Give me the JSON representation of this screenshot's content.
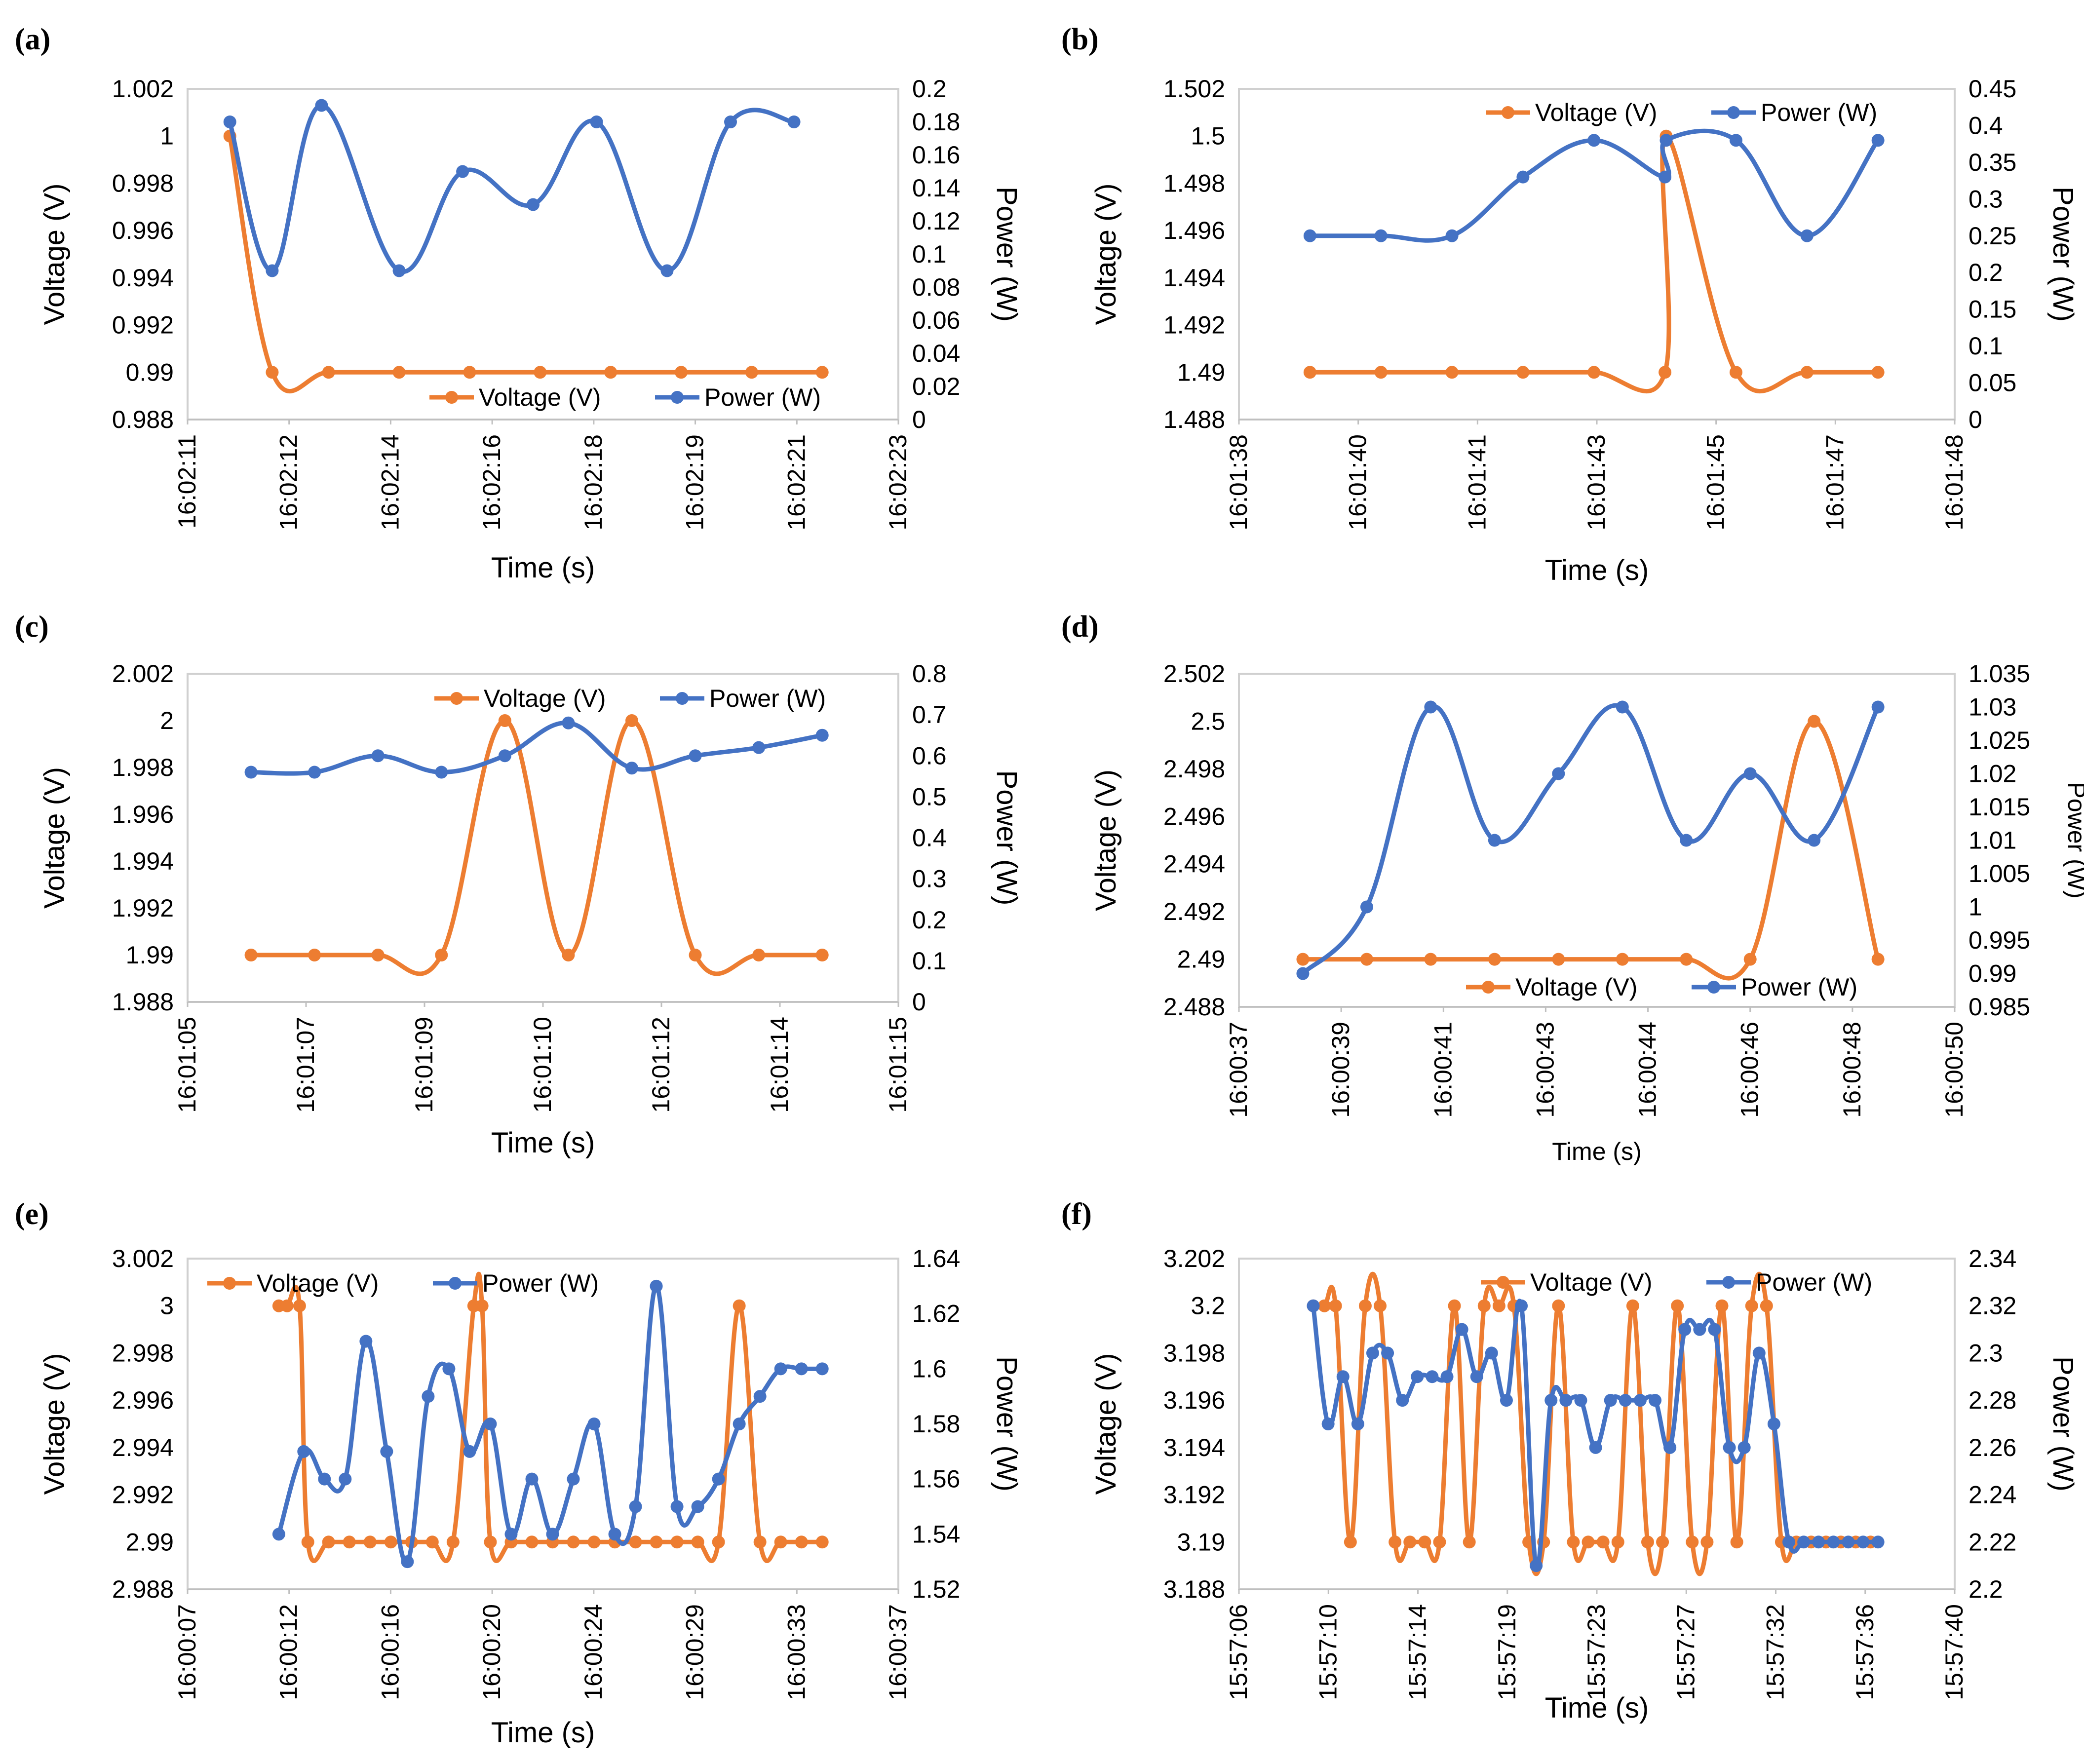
{
  "colors": {
    "voltage": "#ED7D31",
    "power": "#4472C4"
  },
  "chart_data": [
    {
      "panel": "(a)",
      "type": "line",
      "title": "",
      "xlabel": "Time (s)",
      "ylabel_left": "Voltage (V)",
      "ylabel_right": "Power (W)",
      "x_ticks": [
        "16:02:11",
        "16:02:12",
        "16:02:14",
        "16:02:16",
        "16:02:18",
        "16:02:19",
        "16:02:21",
        "16:02:23"
      ],
      "y_left_ticks": [
        "0.988",
        "0.99",
        "0.992",
        "0.994",
        "0.996",
        "0.998",
        "1",
        "1.002"
      ],
      "y_left_range": [
        0.988,
        1.002
      ],
      "y_right_ticks": [
        "0",
        "0.02",
        "0.04",
        "0.06",
        "0.08",
        "0.1",
        "0.12",
        "0.14",
        "0.16",
        "0.18",
        "0.2"
      ],
      "y_right_range": [
        0,
        0.2
      ],
      "legend": [
        "Voltage (V)",
        "Power (W)"
      ],
      "legend_position": "bottom-right",
      "series": [
        {
          "name": "Voltage (V)",
          "axis": "left",
          "x": [
            0.6,
            1.2,
            2.0,
            3.0,
            4.0,
            5.0,
            6.0,
            7.0,
            8.0,
            9.0
          ],
          "values": [
            1,
            0.99,
            0.99,
            0.99,
            0.99,
            0.99,
            0.99,
            0.99,
            0.99,
            0.99
          ]
        },
        {
          "name": "Power (W)",
          "axis": "right",
          "x": [
            0.6,
            1.2,
            1.9,
            3.0,
            3.9,
            4.9,
            5.8,
            6.8,
            7.7,
            8.6
          ],
          "values": [
            0.18,
            0.09,
            0.19,
            0.09,
            0.15,
            0.13,
            0.18,
            0.09,
            0.18,
            0.18
          ]
        }
      ]
    },
    {
      "panel": "(b)",
      "type": "line",
      "title": "",
      "xlabel": "Time (s)",
      "ylabel_left": "Voltage (V)",
      "ylabel_right": "Power (W)",
      "x_ticks": [
        "16:01:38",
        "16:01:40",
        "16:01:41",
        "16:01:43",
        "16:01:45",
        "16:01:47",
        "16:01:48"
      ],
      "y_left_ticks": [
        "1.488",
        "1.49",
        "1.492",
        "1.494",
        "1.496",
        "1.498",
        "1.5",
        "1.502"
      ],
      "y_left_range": [
        1.488,
        1.502
      ],
      "y_right_ticks": [
        "0",
        "0.05",
        "0.1",
        "0.15",
        "0.2",
        "0.25",
        "0.3",
        "0.35",
        "0.4",
        "0.45"
      ],
      "y_right_range": [
        0,
        0.45
      ],
      "legend": [
        "Voltage (V)",
        "Power (W)"
      ],
      "legend_position": "top-right",
      "series": [
        {
          "name": "Voltage (V)",
          "axis": "left",
          "x": [
            0.6,
            1.2,
            1.8,
            2.4,
            3.0,
            3.6,
            3.61,
            4.2,
            4.8,
            5.4
          ],
          "values": [
            1.49,
            1.49,
            1.49,
            1.49,
            1.49,
            1.49,
            1.5,
            1.49,
            1.49,
            1.49
          ]
        },
        {
          "name": "Power (W)",
          "axis": "right",
          "x": [
            0.6,
            1.2,
            1.8,
            2.4,
            3.0,
            3.6,
            3.61,
            4.2,
            4.8,
            5.4
          ],
          "values": [
            0.25,
            0.25,
            0.25,
            0.33,
            0.38,
            0.33,
            0.38,
            0.38,
            0.25,
            0.38
          ]
        }
      ]
    },
    {
      "panel": "(c)",
      "type": "line",
      "title": "",
      "xlabel": "Time (s)",
      "ylabel_left": "Voltage (V)",
      "ylabel_right": "Power (W)",
      "x_ticks": [
        "16:01:05",
        "16:01:07",
        "16:01:09",
        "16:01:10",
        "16:01:12",
        "16:01:14",
        "16:01:15"
      ],
      "y_left_ticks": [
        "1.988",
        "1.99",
        "1.992",
        "1.994",
        "1.996",
        "1.998",
        "2",
        "2.002"
      ],
      "y_left_range": [
        1.988,
        2.002
      ],
      "y_right_ticks": [
        "0",
        "0.1",
        "0.2",
        "0.3",
        "0.4",
        "0.5",
        "0.6",
        "0.7",
        "0.8"
      ],
      "y_right_range": [
        0,
        0.8
      ],
      "legend": [
        "Voltage (V)",
        "Power (W)"
      ],
      "legend_position": "top-right",
      "series": [
        {
          "name": "Voltage (V)",
          "axis": "left",
          "x": [
            0.6,
            1.2,
            1.8,
            2.4,
            3.0,
            3.6,
            4.2,
            4.8,
            5.4,
            6.0
          ],
          "values": [
            1.99,
            1.99,
            1.99,
            1.99,
            2,
            1.99,
            2,
            1.99,
            1.99,
            1.99
          ]
        },
        {
          "name": "Power (W)",
          "axis": "right",
          "x": [
            0.6,
            1.2,
            1.8,
            2.4,
            3.0,
            3.6,
            4.2,
            4.8,
            5.4,
            6.0
          ],
          "values": [
            0.56,
            0.56,
            0.6,
            0.56,
            0.6,
            0.68,
            0.57,
            0.6,
            0.62,
            0.65
          ]
        }
      ]
    },
    {
      "panel": "(d)",
      "type": "line",
      "title": "",
      "xlabel": "Time (s)",
      "ylabel_left": "Voltage (V)",
      "ylabel_right": "Power (W)",
      "x_ticks": [
        "16:00:37",
        "16:00:39",
        "16:00:41",
        "16:00:43",
        "16:00:44",
        "16:00:46",
        "16:00:48",
        "16:00:50"
      ],
      "y_left_ticks": [
        "2.488",
        "2.49",
        "2.492",
        "2.494",
        "2.496",
        "2.498",
        "2.5",
        "2.502"
      ],
      "y_left_range": [
        2.488,
        2.502
      ],
      "y_right_ticks": [
        "0.985",
        "0.99",
        "0.995",
        "1",
        "1.005",
        "1.01",
        "1.015",
        "1.02",
        "1.025",
        "1.03",
        "1.035"
      ],
      "y_right_range": [
        0.985,
        1.035
      ],
      "legend": [
        "Voltage (V)",
        "Power (W)"
      ],
      "legend_position": "bottom-right",
      "series": [
        {
          "name": "Voltage (V)",
          "axis": "left",
          "x": [
            0.6,
            1.2,
            1.8,
            2.4,
            3.0,
            3.6,
            4.2,
            4.8,
            5.4,
            6.0
          ],
          "values": [
            2.49,
            2.49,
            2.49,
            2.49,
            2.49,
            2.49,
            2.49,
            2.49,
            2.5,
            2.49
          ]
        },
        {
          "name": "Power (W)",
          "axis": "right",
          "x": [
            0.6,
            1.2,
            1.8,
            2.4,
            3.0,
            3.6,
            4.2,
            4.8,
            5.4,
            6.0
          ],
          "values": [
            0.99,
            1,
            1.03,
            1.01,
            1.02,
            1.03,
            1.01,
            1.02,
            1.01,
            1.03
          ]
        }
      ]
    },
    {
      "panel": "(e)",
      "type": "line",
      "title": "",
      "xlabel": "Time (s)",
      "ylabel_left": "Voltage (V)",
      "ylabel_right": "Power (W)",
      "x_ticks": [
        "16:00:07",
        "16:00:12",
        "16:00:16",
        "16:00:20",
        "16:00:24",
        "16:00:29",
        "16:00:33",
        "16:00:37"
      ],
      "y_left_ticks": [
        "2.988",
        "2.99",
        "2.992",
        "2.994",
        "2.996",
        "2.998",
        "3",
        "3.002"
      ],
      "y_left_range": [
        2.988,
        3.002
      ],
      "y_right_ticks": [
        "1.52",
        "1.54",
        "1.56",
        "1.58",
        "1.6",
        "1.62",
        "1.64"
      ],
      "y_right_range": [
        1.52,
        1.64
      ],
      "legend": [
        "Voltage (V)",
        "Power (W)"
      ],
      "legend_position": "top-left",
      "series": [
        {
          "name": "Voltage (V)",
          "axis": "left",
          "x": [
            2.2,
            2.4,
            2.7,
            2.9,
            3.4,
            3.9,
            4.4,
            4.9,
            5.4,
            5.9,
            6.4,
            6.9,
            7.1,
            7.3,
            7.8,
            8.3,
            8.8,
            9.3,
            9.8,
            10.3,
            10.8,
            11.3,
            11.8,
            12.3,
            12.8,
            13.3,
            13.8,
            14.3,
            14.8,
            15.3
          ],
          "values": [
            3,
            3,
            3,
            2.99,
            2.99,
            2.99,
            2.99,
            2.99,
            2.99,
            2.99,
            2.99,
            3,
            3,
            2.99,
            2.99,
            2.99,
            2.99,
            2.99,
            2.99,
            2.99,
            2.99,
            2.99,
            2.99,
            2.99,
            2.99,
            3,
            2.99,
            2.99,
            2.99,
            2.99
          ]
        },
        {
          "name": "Power (W)",
          "axis": "right",
          "x": [
            2.2,
            2.8,
            3.3,
            3.8,
            4.3,
            4.8,
            5.3,
            5.8,
            6.3,
            6.8,
            7.3,
            7.8,
            8.3,
            8.8,
            9.3,
            9.8,
            10.3,
            10.8,
            11.3,
            11.8,
            12.3,
            12.8,
            13.3,
            13.8,
            14.3,
            14.8,
            15.3
          ],
          "values": [
            1.54,
            1.57,
            1.56,
            1.56,
            1.61,
            1.57,
            1.53,
            1.59,
            1.6,
            1.57,
            1.58,
            1.54,
            1.56,
            1.54,
            1.56,
            1.58,
            1.54,
            1.55,
            1.63,
            1.55,
            1.55,
            1.56,
            1.58,
            1.59,
            1.6,
            1.6,
            1.6
          ]
        }
      ]
    },
    {
      "panel": "(f)",
      "type": "line",
      "title": "",
      "xlabel": "Time (s)",
      "ylabel_left": "Voltage (V)",
      "ylabel_right": "Power (W)",
      "x_ticks": [
        "15:57:06",
        "15:57:10",
        "15:57:14",
        "15:57:19",
        "15:57:23",
        "15:57:27",
        "15:57:32",
        "15:57:36",
        "15:57:40"
      ],
      "y_left_ticks": [
        "3.188",
        "3.19",
        "3.192",
        "3.194",
        "3.196",
        "3.198",
        "3.2",
        "3.202"
      ],
      "y_left_range": [
        3.188,
        3.202
      ],
      "y_right_ticks": [
        "2.2",
        "2.22",
        "2.24",
        "2.26",
        "2.28",
        "2.3",
        "2.32",
        "2.34"
      ],
      "y_right_range": [
        2.2,
        2.34
      ],
      "legend": [
        "Voltage (V)",
        "Power (W)"
      ],
      "legend_position": "top-right",
      "series": [
        {
          "name": "Voltage (V)",
          "axis": "left",
          "x": [
            2.0,
            2.3,
            2.6,
            3.0,
            3.4,
            3.8,
            4.2,
            4.6,
            5.0,
            5.4,
            5.8,
            6.2,
            6.6,
            7.0,
            7.4,
            7.8,
            8.2,
            8.6,
            9.0,
            9.4,
            9.8,
            10.2,
            10.6,
            11.0,
            11.4,
            11.8,
            12.2,
            12.6,
            13.0,
            13.4,
            13.8,
            14.2,
            14.6,
            15.0,
            15.4,
            15.8,
            16.2,
            16.6,
            17.0
          ],
          "values": [
            3.2,
            3.2,
            3.2,
            3.19,
            3.2,
            3.2,
            3.19,
            3.19,
            3.19,
            3.19,
            3.2,
            3.19,
            3.2,
            3.2,
            3.2,
            3.19,
            3.19,
            3.2,
            3.19,
            3.19,
            3.19,
            3.19,
            3.2,
            3.19,
            3.19,
            3.2,
            3.19,
            3.19,
            3.2,
            3.19,
            3.2,
            3.2,
            3.19,
            3.19,
            3.19,
            3.19,
            3.19,
            3.19,
            3.19
          ]
        },
        {
          "name": "Power (W)",
          "axis": "right",
          "x": [
            2.0,
            2.4,
            2.8,
            3.2,
            3.6,
            4.0,
            4.4,
            4.8,
            5.2,
            5.6,
            6.0,
            6.4,
            6.8,
            7.2,
            7.6,
            8.0,
            8.4,
            8.8,
            9.2,
            9.6,
            10.0,
            10.4,
            10.8,
            11.2,
            11.6,
            12.0,
            12.4,
            12.8,
            13.2,
            13.6,
            14.0,
            14.4,
            14.8,
            15.2,
            15.6,
            16.0,
            16.4,
            16.8,
            17.2
          ],
          "values": [
            2.32,
            2.27,
            2.29,
            2.27,
            2.3,
            2.3,
            2.28,
            2.29,
            2.29,
            2.29,
            2.31,
            2.29,
            2.3,
            2.28,
            2.32,
            2.21,
            2.28,
            2.28,
            2.28,
            2.26,
            2.28,
            2.28,
            2.28,
            2.28,
            2.26,
            2.31,
            2.31,
            2.31,
            2.26,
            2.26,
            2.3,
            2.27,
            2.22,
            2.22,
            2.22,
            2.22,
            2.22,
            2.22,
            2.22
          ]
        }
      ]
    }
  ]
}
